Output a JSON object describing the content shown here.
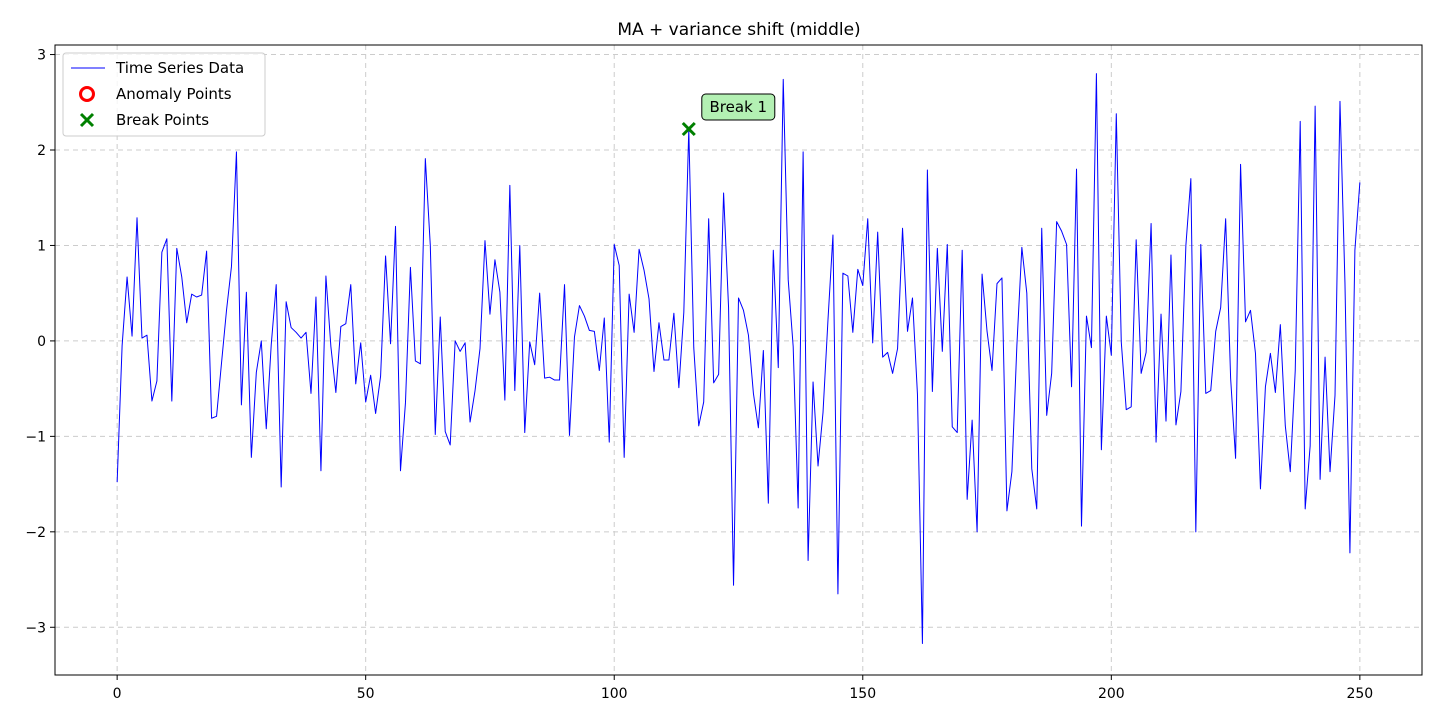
{
  "chart_data": {
    "type": "line",
    "title": "MA + variance shift (middle)",
    "xlabel": "",
    "ylabel": "",
    "xlim": [
      -12.5,
      262.5
    ],
    "ylim": [
      -3.5,
      3.1
    ],
    "xticks": [
      0,
      50,
      100,
      150,
      200,
      250
    ],
    "yticks": [
      -3,
      -2,
      -1,
      0,
      1,
      2,
      3
    ],
    "xtick_labels": [
      "0",
      "50",
      "100",
      "150",
      "200",
      "250"
    ],
    "ytick_labels": [
      "−3",
      "−2",
      "−1",
      "0",
      "1",
      "2",
      "3"
    ],
    "grid": true,
    "legend_position": "top-left",
    "legend": [
      {
        "label": "Time Series Data",
        "marker": "line",
        "color": "#0000ff"
      },
      {
        "label": "Anomaly Points",
        "marker": "circle",
        "color": "#ff0000"
      },
      {
        "label": "Break Points",
        "marker": "x",
        "color": "#008000"
      }
    ],
    "series": [
      {
        "name": "Time Series Data",
        "color": "#0000ff",
        "x_start": 0,
        "values": [
          -1.48,
          -0.05,
          0.67,
          0.05,
          1.29,
          0.03,
          0.06,
          -0.63,
          -0.42,
          0.93,
          1.07,
          -0.63,
          0.97,
          0.67,
          0.19,
          0.49,
          0.46,
          0.48,
          0.94,
          -0.81,
          -0.79,
          -0.23,
          0.32,
          0.78,
          1.98,
          -0.67,
          0.51,
          -1.22,
          -0.33,
          0.0,
          -0.92,
          -0.04,
          0.59,
          -1.53,
          0.41,
          0.14,
          0.09,
          0.03,
          0.09,
          -0.55,
          0.46,
          -1.36,
          0.68,
          -0.06,
          -0.54,
          0.15,
          0.18,
          0.59,
          -0.45,
          -0.02,
          -0.64,
          -0.36,
          -0.76,
          -0.37,
          0.89,
          -0.03,
          1.2,
          -1.36,
          -0.65,
          0.77,
          -0.21,
          -0.24,
          1.91,
          1.0,
          -0.98,
          0.25,
          -0.95,
          -1.09,
          0.0,
          -0.11,
          -0.02,
          -0.85,
          -0.52,
          -0.08,
          1.05,
          0.28,
          0.85,
          0.51,
          -0.62,
          1.63,
          -0.52,
          1.0,
          -0.96,
          -0.01,
          -0.25,
          0.5,
          -0.39,
          -0.38,
          -0.41,
          -0.41,
          0.59,
          -0.99,
          0.04,
          0.37,
          0.26,
          0.11,
          0.1,
          -0.31,
          0.24,
          -1.06,
          1.01,
          0.79,
          -1.22,
          0.49,
          0.09,
          0.96,
          0.74,
          0.44,
          -0.32,
          0.19,
          -0.2,
          -0.2,
          0.29,
          -0.49,
          0.3,
          2.22,
          -0.07,
          -0.89,
          -0.64,
          1.28,
          -0.44,
          -0.35,
          1.55,
          0.35,
          -2.56,
          0.45,
          0.32,
          0.06,
          -0.55,
          -0.91,
          -0.1,
          -1.7,
          0.95,
          -0.28,
          2.74,
          0.64,
          -0.06,
          -1.75,
          1.98,
          -2.3,
          -0.43,
          -1.31,
          -0.75,
          0.22,
          1.11,
          -2.65,
          0.71,
          0.68,
          0.09,
          0.75,
          0.58,
          1.28,
          -0.02,
          1.14,
          -0.17,
          -0.12,
          -0.34,
          -0.08,
          1.18,
          0.1,
          0.45,
          -0.56,
          -3.17,
          1.79,
          -0.53,
          0.97,
          -0.11,
          1.01,
          -0.9,
          -0.96,
          0.95,
          -1.66,
          -0.83,
          -2.0,
          0.7,
          0.1,
          -0.31,
          0.6,
          0.66,
          -1.78,
          -1.37,
          -0.05,
          0.98,
          0.5,
          -1.34,
          -1.76,
          1.18,
          -0.78,
          -0.34,
          1.25,
          1.15,
          1.01,
          -0.48,
          1.8,
          -1.94,
          0.26,
          -0.07,
          2.8,
          -1.14,
          0.26,
          -0.15,
          2.38,
          -0.01,
          -0.72,
          -0.69,
          1.06,
          -0.34,
          -0.12,
          1.23,
          -1.06,
          0.28,
          -0.84,
          0.9,
          -0.88,
          -0.53,
          1.0,
          1.7,
          -2.0,
          1.01,
          -0.55,
          -0.52,
          0.1,
          0.35,
          1.28,
          -0.39,
          -1.23,
          1.85,
          0.2,
          0.32,
          -0.13,
          -1.55,
          -0.48,
          -0.13,
          -0.54,
          0.17,
          -0.89,
          -1.37,
          -0.31,
          2.3,
          -1.76,
          -1.1,
          2.46,
          -1.45,
          -0.17,
          -1.37,
          -0.57,
          2.51,
          0.61,
          -2.22,
          0.95,
          1.66
        ]
      }
    ],
    "anomaly_points": [],
    "break_points": [
      {
        "x": 115,
        "y": 2.22,
        "label": "Break 1"
      }
    ]
  }
}
